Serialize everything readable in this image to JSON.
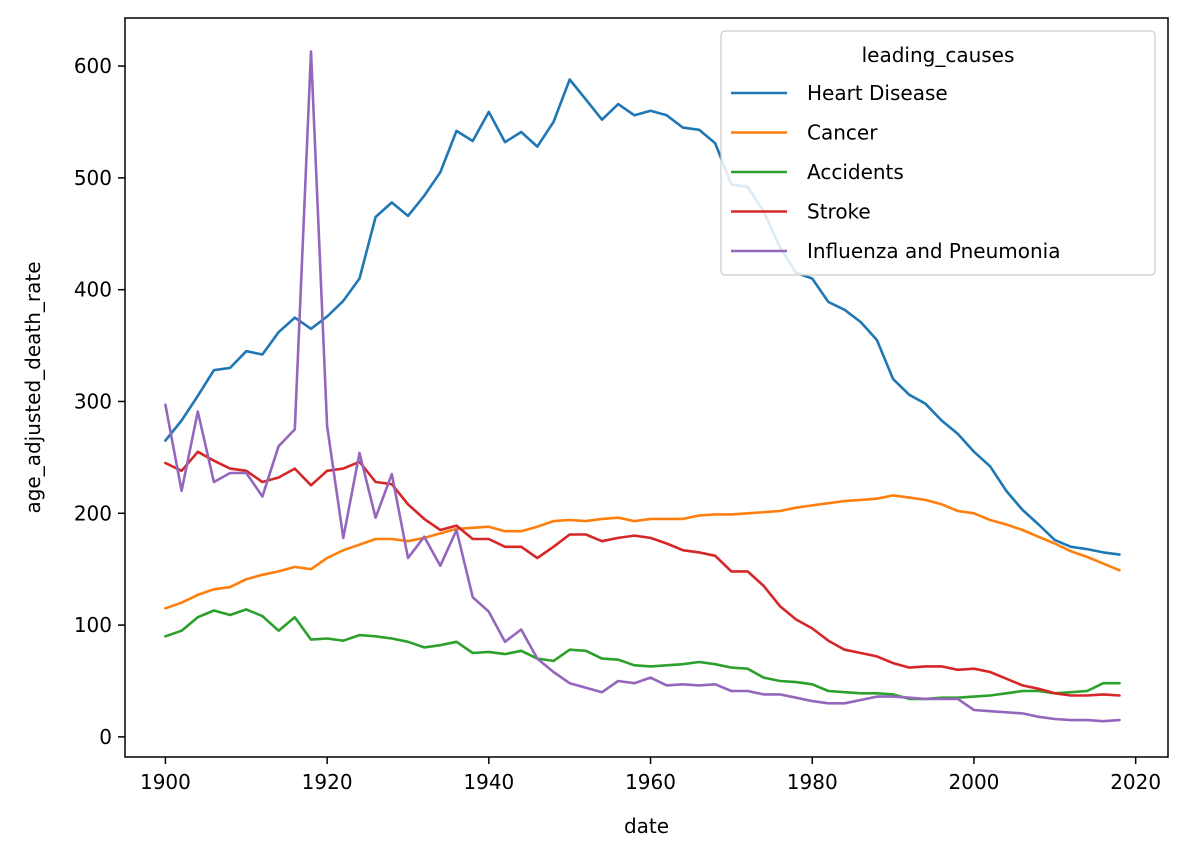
{
  "chart_data": {
    "type": "line",
    "title": "",
    "xlabel": "date",
    "ylabel": "age_adjusted_death_rate",
    "xlim": [
      1895,
      2024
    ],
    "ylim": [
      -18,
      643
    ],
    "xticks": [
      1900,
      1920,
      1940,
      1960,
      1980,
      2000,
      2020
    ],
    "yticks": [
      0,
      100,
      200,
      300,
      400,
      500,
      600
    ],
    "grid": false,
    "legend": {
      "title": "leading_causes",
      "position": "top-right"
    },
    "x": [
      1900,
      1902,
      1904,
      1906,
      1908,
      1910,
      1912,
      1914,
      1916,
      1918,
      1920,
      1922,
      1924,
      1926,
      1928,
      1930,
      1932,
      1934,
      1936,
      1938,
      1940,
      1942,
      1944,
      1946,
      1948,
      1950,
      1952,
      1954,
      1956,
      1958,
      1960,
      1962,
      1964,
      1966,
      1968,
      1970,
      1972,
      1974,
      1976,
      1978,
      1980,
      1982,
      1984,
      1986,
      1988,
      1990,
      1992,
      1994,
      1996,
      1998,
      2000,
      2002,
      2004,
      2006,
      2008,
      2010,
      2012,
      2014,
      2016,
      2018
    ],
    "series": [
      {
        "name": "Heart Disease",
        "color": "#1f77b4",
        "values": [
          265,
          283,
          305,
          328,
          330,
          345,
          342,
          362,
          375,
          365,
          376,
          390,
          410,
          465,
          478,
          466,
          484,
          505,
          542,
          533,
          559,
          532,
          541,
          528,
          550,
          588,
          570,
          552,
          566,
          556,
          560,
          556,
          545,
          543,
          531,
          494,
          492,
          470,
          438,
          415,
          410,
          389,
          382,
          371,
          355,
          320,
          306,
          298,
          283,
          271,
          255,
          242,
          220,
          203,
          190,
          176,
          170,
          168,
          165,
          163
        ]
      },
      {
        "name": "Cancer",
        "color": "#ff7f0e",
        "values": [
          115,
          120,
          127,
          132,
          134,
          141,
          145,
          148,
          152,
          150,
          160,
          167,
          172,
          177,
          177,
          175,
          178,
          182,
          186,
          187,
          188,
          184,
          184,
          188,
          193,
          194,
          193,
          195,
          196,
          193,
          195,
          195,
          195,
          198,
          199,
          199,
          200,
          201,
          202,
          205,
          207,
          209,
          211,
          212,
          213,
          216,
          214,
          212,
          208,
          202,
          200,
          194,
          190,
          185,
          179,
          173,
          166,
          161,
          155,
          149
        ]
      },
      {
        "name": "Accidents",
        "color": "#2ca02c",
        "values": [
          90,
          95,
          107,
          113,
          109,
          114,
          108,
          95,
          107,
          87,
          88,
          86,
          91,
          90,
          88,
          85,
          80,
          82,
          85,
          75,
          76,
          74,
          77,
          70,
          68,
          78,
          77,
          70,
          69,
          64,
          63,
          64,
          65,
          67,
          65,
          62,
          61,
          53,
          50,
          49,
          47,
          41,
          40,
          39,
          39,
          38,
          34,
          34,
          35,
          35,
          36,
          37,
          39,
          41,
          41,
          39,
          40,
          41,
          48,
          48
        ]
      },
      {
        "name": "Stroke",
        "color": "#d62728",
        "values": [
          245,
          238,
          255,
          247,
          240,
          238,
          228,
          232,
          240,
          225,
          238,
          240,
          246,
          228,
          226,
          208,
          195,
          185,
          189,
          177,
          177,
          170,
          170,
          160,
          170,
          181,
          181,
          175,
          178,
          180,
          178,
          173,
          167,
          165,
          162,
          148,
          148,
          135,
          117,
          105,
          97,
          86,
          78,
          75,
          72,
          66,
          62,
          63,
          63,
          60,
          61,
          58,
          52,
          46,
          43,
          39,
          37,
          37,
          38,
          37
        ]
      },
      {
        "name": "Influenza and Pneumonia",
        "color": "#9467bd",
        "values": [
          297,
          220,
          291,
          228,
          236,
          236,
          215,
          260,
          275,
          613,
          278,
          178,
          254,
          196,
          235,
          160,
          179,
          153,
          185,
          125,
          112,
          85,
          96,
          70,
          58,
          48,
          44,
          40,
          50,
          48,
          53,
          46,
          47,
          46,
          47,
          41,
          41,
          38,
          38,
          35,
          32,
          30,
          30,
          33,
          36,
          36,
          35,
          34,
          34,
          34,
          24,
          23,
          22,
          21,
          18,
          16,
          15,
          15,
          14,
          15
        ]
      }
    ]
  }
}
